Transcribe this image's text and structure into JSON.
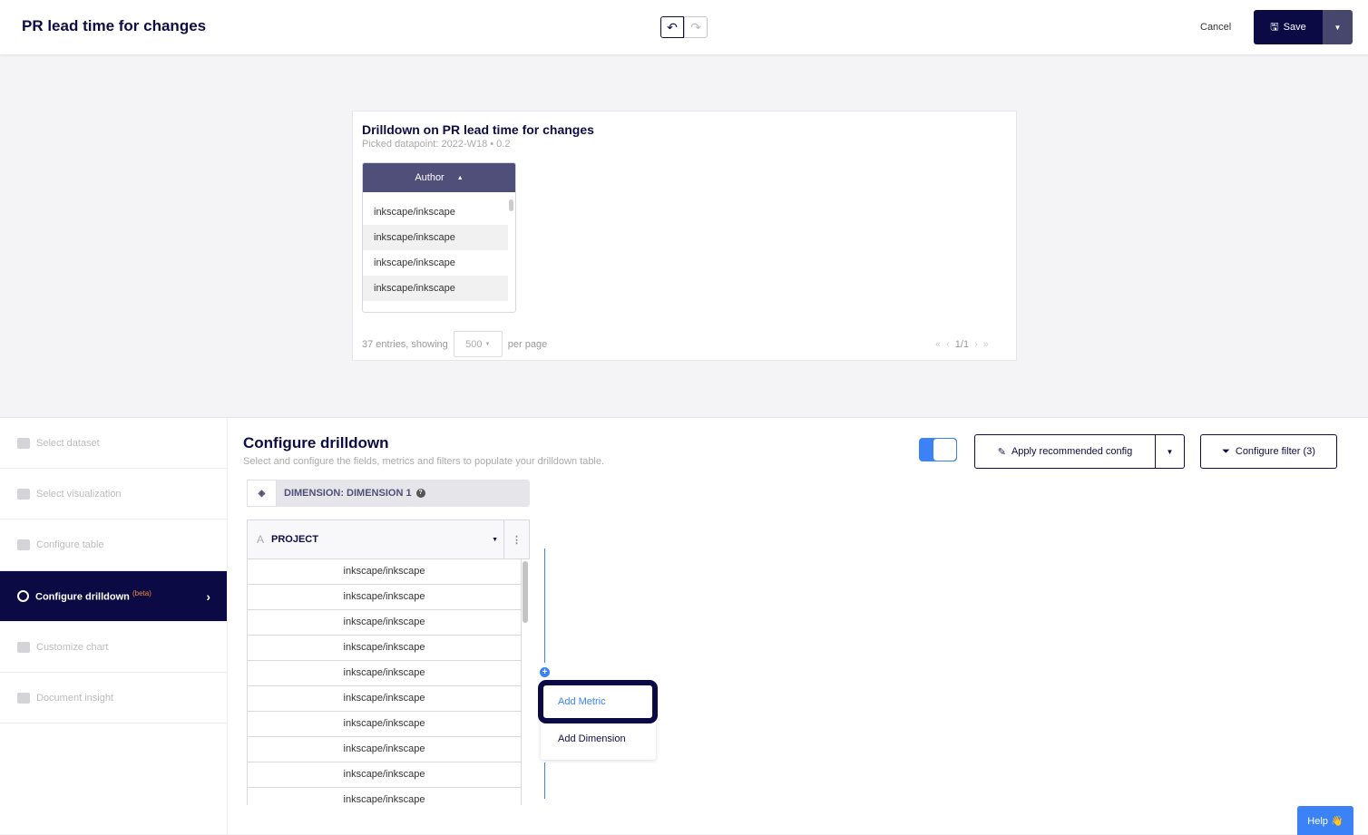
{
  "header": {
    "title": "PR lead time for changes",
    "cancel": "Cancel",
    "save": "Save"
  },
  "card": {
    "title": "Drilldown on PR lead time for changes",
    "picked": "Picked datapoint:  2022-W18 • 0.2",
    "column": "Author",
    "rows": [
      "inkscape/inkscape",
      "inkscape/inkscape",
      "inkscape/inkscape",
      "inkscape/inkscape"
    ],
    "entries": "37 entries, showing",
    "per_page_value": "500",
    "per_page": "per page",
    "page": "1/1"
  },
  "sidebar": {
    "items": [
      {
        "label": "Select dataset"
      },
      {
        "label": "Select visualization"
      },
      {
        "label": "Configure table"
      },
      {
        "label": "Configure drilldown",
        "badge": "(beta)",
        "active": true
      },
      {
        "label": "Customize chart"
      },
      {
        "label": "Document insight"
      }
    ]
  },
  "main": {
    "title": "Configure drilldown",
    "subtitle": "Select and configure the fields, metrics and filters to populate your drilldown table.",
    "toggle_on": true,
    "apply": "Apply recommended config",
    "filter": "Configure filter (3)",
    "dimension": "DIMENSION: DIMENSION 1",
    "field": "PROJECT",
    "rows": [
      "inkscape/inkscape",
      "inkscape/inkscape",
      "inkscape/inkscape",
      "inkscape/inkscape",
      "inkscape/inkscape",
      "inkscape/inkscape",
      "inkscape/inkscape",
      "inkscape/inkscape",
      "inkscape/inkscape",
      "inkscape/inkscape"
    ],
    "menu": {
      "add_metric": "Add Metric",
      "add_dimension": "Add Dimension"
    }
  },
  "help": "Help 👋",
  "colors": {
    "navy": "#0b0a45",
    "accent": "#3b82f6",
    "beta": "#f08a3c"
  }
}
